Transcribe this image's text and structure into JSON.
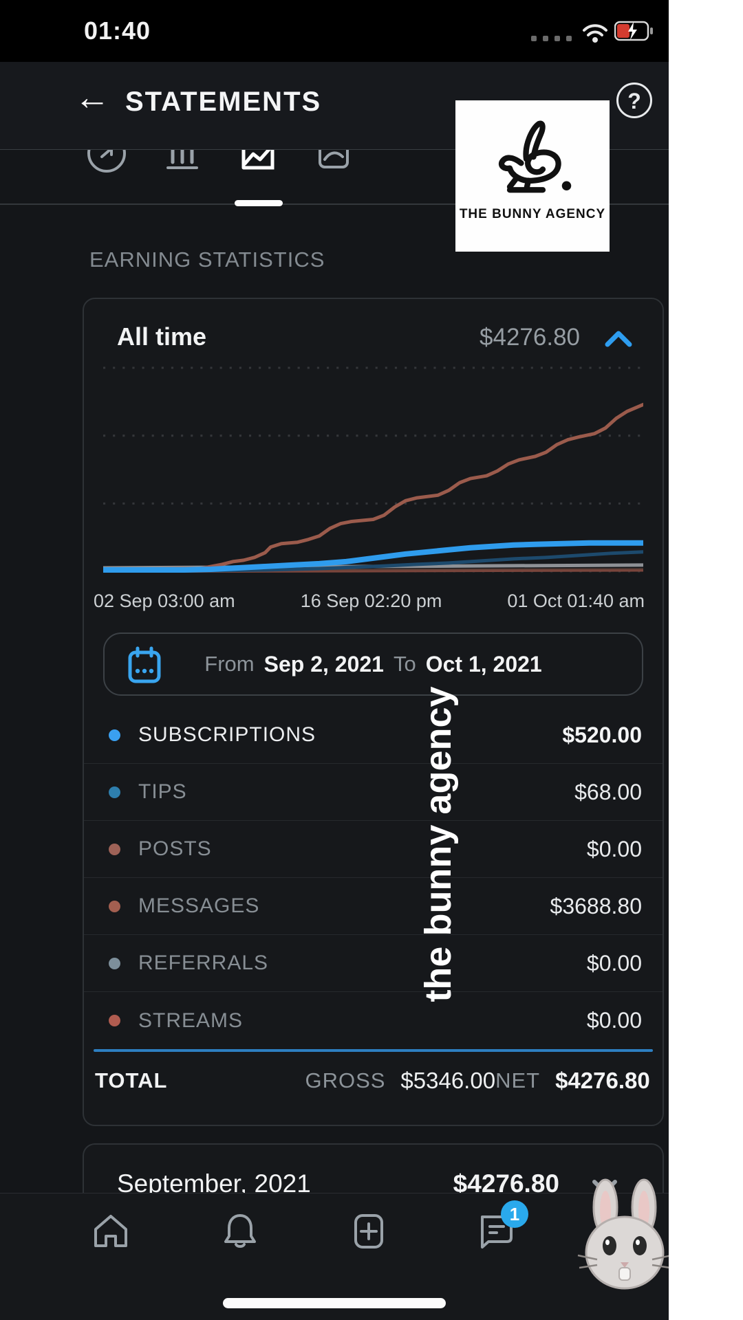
{
  "status_bar": {
    "time": "01:40"
  },
  "header": {
    "title": "STATEMENTS",
    "back_icon": "back-arrow",
    "help_icon": "question-mark"
  },
  "logo_overlay": {
    "text": "THE BUNNY AGENCY"
  },
  "tabs": [
    {
      "name": "payouts",
      "icon": "dollar-circle-icon",
      "active": false
    },
    {
      "name": "earnings",
      "icon": "bar-chart-icon",
      "active": false
    },
    {
      "name": "statistics",
      "icon": "line-chart-icon",
      "active": true
    },
    {
      "name": "engagement",
      "icon": "chart-box-icon",
      "active": false
    }
  ],
  "section_title": "EARNING STATISTICS",
  "card": {
    "period_label": "All time",
    "period_total": "$4276.80",
    "axis_labels": [
      "02 Sep 03:00 am",
      "16 Sep 02:20 pm",
      "01 Oct 01:40 am"
    ],
    "date_range": {
      "from_label": "From",
      "from": "Sep 2, 2021",
      "to_label": "To",
      "to": "Oct 1, 2021"
    },
    "rows": [
      {
        "label": "SUBSCRIPTIONS",
        "value": "$520.00",
        "color": "#3aa0f0",
        "emphasis": true
      },
      {
        "label": "TIPS",
        "value": "$68.00",
        "color": "#2e7fae",
        "emphasis": false
      },
      {
        "label": "POSTS",
        "value": "$0.00",
        "color": "#9e6257",
        "emphasis": false
      },
      {
        "label": "MESSAGES",
        "value": "$3688.80",
        "color": "#a35f50",
        "emphasis": false
      },
      {
        "label": "REFERRALS",
        "value": "$0.00",
        "color": "#7d8f9b",
        "emphasis": false
      },
      {
        "label": "STREAMS",
        "value": "$0.00",
        "color": "#b05c50",
        "emphasis": false
      }
    ],
    "total": {
      "label": "TOTAL",
      "gross_label": "GROSS",
      "gross": "$5346.00",
      "net_label": "NET",
      "net": "$4276.80"
    }
  },
  "monthly": {
    "label": "September, 2021",
    "value": "$4276.80"
  },
  "nav": {
    "items": [
      "home",
      "notifications",
      "new-post",
      "messages",
      "profile"
    ],
    "messages_badge": "1"
  },
  "watermark": "the bunny agency",
  "colors": {
    "accent_blue": "#2f9ced",
    "rule_blue": "#2d7fc1",
    "badge_blue": "#2aa9ec",
    "card_bg": "#16181b",
    "page_bg": "#141619"
  },
  "chart_data": {
    "type": "line",
    "title": "All time earnings",
    "x_ticks": [
      "02 Sep 03:00 am",
      "16 Sep 02:20 pm",
      "01 Oct 01:40 am"
    ],
    "ylim": [
      0,
      4500
    ],
    "grid": "dashed-horizontal-4",
    "note": "points are [x 0-100, y-px 0-300 from top; 300 = $0, 0 = $4500]",
    "series": [
      {
        "name": "REFERRALS",
        "end_value": 0.0,
        "color": "#8e9196",
        "width": 5,
        "points": [
          [
            0,
            293
          ],
          [
            100,
            289
          ]
        ]
      },
      {
        "name": "POSTS",
        "end_value": 0.0,
        "color": "#5f4038",
        "width": 3,
        "points": [
          [
            0,
            297
          ],
          [
            100,
            295
          ]
        ]
      },
      {
        "name": "STREAMS",
        "end_value": 0.0,
        "color": "#7a453c",
        "width": 3,
        "points": [
          [
            0,
            299
          ],
          [
            100,
            297
          ]
        ]
      },
      {
        "name": "TIPS",
        "end_value": 68.0,
        "color": "#1d4a6d",
        "width": 5,
        "points": [
          [
            0,
            298
          ],
          [
            20,
            297
          ],
          [
            30,
            296
          ],
          [
            40,
            294
          ],
          [
            50,
            291
          ],
          [
            58,
            288
          ],
          [
            64,
            286
          ],
          [
            70,
            283
          ],
          [
            76,
            280
          ],
          [
            82,
            278
          ],
          [
            88,
            275
          ],
          [
            94,
            272
          ],
          [
            100,
            270
          ]
        ]
      },
      {
        "name": "MESSAGES",
        "end_value": 3688.8,
        "color": "#9b5b4c",
        "width": 5,
        "points": [
          [
            0,
            295
          ],
          [
            18,
            294
          ],
          [
            20,
            291
          ],
          [
            22,
            288
          ],
          [
            24,
            284
          ],
          [
            26,
            282
          ],
          [
            28,
            278
          ],
          [
            30,
            271
          ],
          [
            31,
            263
          ],
          [
            33,
            258
          ],
          [
            36,
            256
          ],
          [
            38,
            252
          ],
          [
            40,
            247
          ],
          [
            42,
            236
          ],
          [
            44,
            229
          ],
          [
            46,
            226
          ],
          [
            50,
            223
          ],
          [
            52,
            217
          ],
          [
            54,
            205
          ],
          [
            56,
            196
          ],
          [
            58,
            192
          ],
          [
            62,
            188
          ],
          [
            64,
            181
          ],
          [
            66,
            170
          ],
          [
            68,
            164
          ],
          [
            71,
            160
          ],
          [
            73,
            153
          ],
          [
            75,
            143
          ],
          [
            77,
            137
          ],
          [
            80,
            132
          ],
          [
            82,
            126
          ],
          [
            84,
            115
          ],
          [
            86,
            108
          ],
          [
            88,
            104
          ],
          [
            91,
            99
          ],
          [
            93,
            91
          ],
          [
            95,
            77
          ],
          [
            97,
            67
          ],
          [
            100,
            57
          ]
        ]
      },
      {
        "name": "SUBSCRIPTIONS",
        "end_value": 520.0,
        "color": "#2f9ced",
        "width": 8,
        "points": [
          [
            0,
            296
          ],
          [
            15,
            296
          ],
          [
            20,
            295
          ],
          [
            25,
            293
          ],
          [
            30,
            291
          ],
          [
            35,
            289
          ],
          [
            40,
            287
          ],
          [
            45,
            284
          ],
          [
            48,
            281
          ],
          [
            52,
            277
          ],
          [
            56,
            273
          ],
          [
            60,
            270
          ],
          [
            64,
            267
          ],
          [
            68,
            264
          ],
          [
            72,
            262
          ],
          [
            76,
            260
          ],
          [
            80,
            259
          ],
          [
            85,
            258
          ],
          [
            90,
            257
          ],
          [
            95,
            257
          ],
          [
            100,
            257
          ]
        ]
      }
    ]
  }
}
